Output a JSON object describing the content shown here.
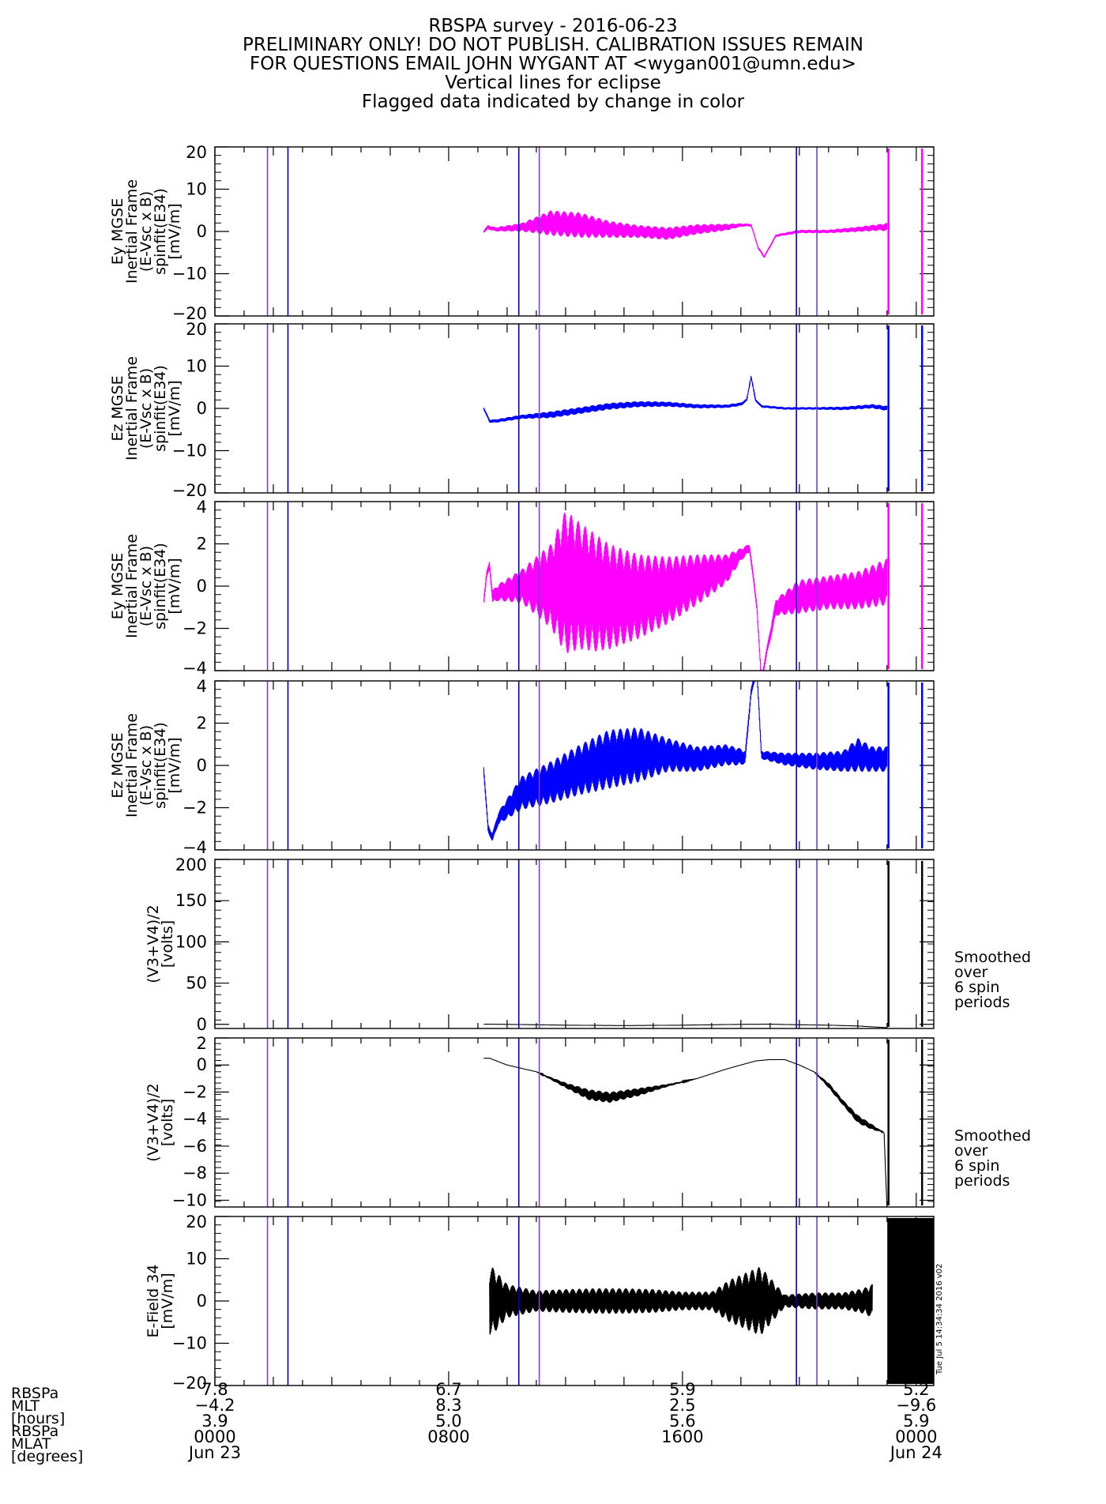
{
  "title_lines": [
    "RBSPA survey - 2016-06-23",
    "PRELIMINARY ONLY! DO NOT PUBLISH. CALIBRATION ISSUES REMAIN",
    "FOR QUESTIONS EMAIL JOHN WYGANT AT <wygan001@umn.edu>",
    "Vertical lines for eclipse",
    "Flagged data indicated by change in color"
  ],
  "side_notes": [
    {
      "panel": 4,
      "lines": [
        "Smoothed",
        "over",
        "6 spin",
        "periods"
      ]
    },
    {
      "panel": 5,
      "lines": [
        "Smoothed",
        "over",
        "6 spin",
        "periods"
      ]
    }
  ],
  "stamp": "Tue Jul  5 14:34:34 2016 v02",
  "colors": {
    "magenta": "#ff00ff",
    "blue": "#0000ff",
    "black": "#000000",
    "eclipse_outer": "#0000cc",
    "eclipse_inner": "#7b3fd6"
  },
  "x_axis": {
    "row_labels": [
      "RBSPa",
      "MLT",
      "[hours]",
      "RBSPa",
      "MLAT",
      "[degrees]"
    ],
    "ticks": [
      {
        "hour": 0,
        "mlt": "7.8",
        "mlat": "-4.2",
        "l": "3.9",
        "time": "0000",
        "date": "Jun 23"
      },
      {
        "hour": 8,
        "mlt": "6.7",
        "mlat": "8.3",
        "l": "5.0",
        "time": "0800",
        "date": ""
      },
      {
        "hour": 16,
        "mlt": "5.9",
        "mlat": "2.5",
        "l": "5.6",
        "time": "1600",
        "date": ""
      },
      {
        "hour": 24,
        "mlt": "5.2",
        "mlat": "-9.6",
        "l": "5.9",
        "time": "0000",
        "date": "Jun 24"
      }
    ]
  },
  "chart_data": [
    {
      "type": "line",
      "ylabel_lines": [
        "Ey MGSE",
        "Inertial Frame",
        "(E-Vsc x B)",
        "spinfit(E34)",
        "[mV/m]"
      ],
      "ylim": [
        -20,
        20
      ],
      "yticks": [
        20,
        10,
        0,
        -10,
        -20
      ],
      "series": [
        {
          "color": "magenta",
          "x": [
            9.2,
            9.35,
            9.6,
            10.5,
            11.5,
            12.5,
            13.5,
            14.5,
            15.5,
            16.5,
            17.5,
            18.0,
            18.35,
            18.6,
            18.8,
            19.2,
            20.0,
            21.0,
            22.0,
            22.8,
            23.0
          ],
          "y": [
            0,
            1,
            0.5,
            1,
            2,
            1.5,
            0.5,
            0,
            -0.5,
            0.5,
            1,
            1.5,
            1.5,
            -4,
            -6,
            -1,
            0,
            0,
            0.5,
            1,
            1
          ],
          "noise": [
            0.3,
            0.5,
            0.5,
            1,
            3,
            3,
            2,
            1.5,
            1.5,
            1.2,
            0.8,
            0.4,
            0.3,
            0.3,
            0.3,
            0.3,
            0.4,
            0.4,
            0.6,
            0.8,
            1
          ]
        }
      ]
    },
    {
      "type": "line",
      "ylabel_lines": [
        "Ez MGSE",
        "Inertial Frame",
        "(E-Vsc x B)",
        "spinfit(E34)",
        "[mV/m]"
      ],
      "ylim": [
        -20,
        20
      ],
      "yticks": [
        20,
        10,
        0,
        -10,
        -20
      ],
      "series": [
        {
          "color": "blue",
          "x": [
            9.2,
            9.4,
            9.6,
            10.5,
            11.5,
            12.5,
            13.5,
            14.5,
            15.5,
            16.5,
            17.5,
            18.0,
            18.2,
            18.35,
            18.5,
            18.7,
            19.5,
            20.5,
            21.5,
            22.5,
            23.0
          ],
          "y": [
            0,
            -3,
            -3,
            -2,
            -1.5,
            -0.5,
            0.5,
            1,
            1,
            0.5,
            0.5,
            1,
            2,
            7.5,
            2,
            0.5,
            0,
            0,
            0,
            0.5,
            0
          ],
          "noise": [
            0.3,
            0.4,
            0.4,
            0.5,
            0.8,
            0.8,
            0.8,
            0.7,
            0.6,
            0.5,
            0.4,
            0.4,
            0.3,
            0.3,
            0.3,
            0.3,
            0.3,
            0.3,
            0.4,
            0.5,
            0.6
          ]
        }
      ]
    },
    {
      "type": "line",
      "ylabel_lines": [
        "Ey MGSE",
        "Inertial Frame",
        "(E-Vsc x B)",
        "spinfit(E34)",
        "[mV/m]"
      ],
      "ylim": [
        -4,
        4
      ],
      "yticks": [
        4,
        2,
        0,
        -2,
        -4
      ],
      "series": [
        {
          "color": "magenta",
          "x": [
            9.2,
            9.3,
            9.4,
            9.5,
            9.7,
            10.5,
            11.5,
            12.0,
            12.5,
            13.0,
            13.5,
            14.5,
            15.5,
            16.5,
            17.5,
            18.0,
            18.3,
            18.55,
            18.7,
            18.9,
            19.2,
            20.0,
            21.0,
            22.0,
            22.5,
            23.0
          ],
          "y": [
            -0.7,
            0.5,
            1,
            -0.5,
            -0.3,
            0,
            0,
            0.2,
            0,
            -0.3,
            -0.5,
            -0.5,
            -0.2,
            0.3,
            0.8,
            1.5,
            1.8,
            -1,
            -4.5,
            -3,
            -1,
            -0.5,
            -0.3,
            -0.2,
            0,
            0.2
          ],
          "noise": [
            0.2,
            0.2,
            0.2,
            0.3,
            0.4,
            0.8,
            2,
            3.4,
            3,
            2.8,
            2.5,
            2,
            1.6,
            1.2,
            0.7,
            0.3,
            0.2,
            0.2,
            0.2,
            0.2,
            0.4,
            0.8,
            0.8,
            0.9,
            1,
            1.1
          ]
        }
      ]
    },
    {
      "type": "line",
      "ylabel_lines": [
        "Ez MGSE",
        "Inertial Frame",
        "(E-Vsc x B)",
        "spinfit(E34)",
        "[mV/m]"
      ],
      "ylim": [
        -4,
        4
      ],
      "yticks": [
        4,
        2,
        0,
        -2,
        -4
      ],
      "series": [
        {
          "color": "blue",
          "x": [
            9.2,
            9.35,
            9.5,
            9.7,
            10.5,
            11.5,
            12.5,
            13.5,
            14.5,
            15.5,
            16.5,
            17.5,
            18.0,
            18.15,
            18.35,
            18.55,
            18.7,
            19.5,
            20.5,
            21.5,
            22.0,
            22.5,
            23.0
          ],
          "y": [
            -0.2,
            -3,
            -3.4,
            -2.5,
            -1.3,
            -0.8,
            -0.2,
            0.3,
            0.5,
            0.5,
            0.3,
            0.5,
            0.4,
            0.4,
            3.5,
            4.5,
            0.5,
            0.3,
            0.2,
            0.2,
            0.5,
            0.3,
            0.3
          ],
          "noise": [
            0.2,
            0.2,
            0.2,
            0.3,
            0.8,
            1,
            1.2,
            1.4,
            1.3,
            0.8,
            0.6,
            0.5,
            0.4,
            0.3,
            0.2,
            0.2,
            0.2,
            0.3,
            0.4,
            0.5,
            0.8,
            0.6,
            0.6
          ]
        }
      ]
    },
    {
      "type": "line",
      "ylabel_lines": [
        "(V3+V4)/2",
        "[volts]"
      ],
      "ylim": [
        -5,
        200
      ],
      "yticks": [
        200,
        150,
        100,
        50,
        0
      ],
      "series": [
        {
          "color": "black",
          "x": [
            9.2,
            10,
            12,
            14,
            16,
            18,
            19,
            20,
            21,
            22,
            22.5,
            23.0
          ],
          "y": [
            0.2,
            0,
            -1,
            -1.5,
            -1,
            0,
            0.2,
            -0.5,
            -1,
            -2,
            -3,
            -4
          ],
          "noise": [
            0,
            0,
            0,
            0,
            0,
            0,
            0,
            0,
            0,
            0,
            0,
            0
          ]
        }
      ]
    },
    {
      "type": "line",
      "ylabel_lines": [
        "(V3+V4)/2",
        "[volts]"
      ],
      "ylim": [
        -10.5,
        2
      ],
      "yticks": [
        2,
        0,
        -2,
        -4,
        -6,
        -8,
        -10
      ],
      "series": [
        {
          "color": "black",
          "x": [
            9.2,
            9.4,
            10,
            11,
            12,
            12.8,
            13.5,
            14.5,
            15.5,
            16.5,
            17.5,
            18.0,
            18.5,
            19.0,
            19.5,
            20.0,
            20.5,
            21.0,
            21.5,
            22.0,
            22.5,
            22.9,
            22.95,
            23.0
          ],
          "y": [
            0.5,
            0.5,
            0,
            -0.5,
            -1.5,
            -2.2,
            -2.4,
            -2,
            -1.5,
            -1,
            -0.3,
            0,
            0.3,
            0.4,
            0.4,
            0,
            -0.5,
            -1.5,
            -2.8,
            -4,
            -4.6,
            -5,
            -8,
            -10.5
          ],
          "noise": [
            0,
            0,
            0,
            0,
            0.2,
            0.4,
            0.4,
            0.3,
            0.1,
            0,
            0,
            0,
            0,
            0,
            0,
            0,
            0,
            0.2,
            0.2,
            0.3,
            0.2,
            0,
            0,
            0
          ]
        }
      ]
    },
    {
      "type": "line",
      "ylabel_lines": [
        "E-Field 34",
        "[mV/m]"
      ],
      "ylim": [
        -20,
        20
      ],
      "yticks": [
        20,
        10,
        0,
        -10,
        -20
      ],
      "series": [
        {
          "color": "black",
          "x": [
            9.4,
            9.5,
            10,
            11,
            12,
            13,
            14,
            15,
            16,
            17,
            17.5,
            17.6,
            18.6,
            18.7,
            19.5,
            20.5,
            21.5,
            22.2,
            22.5
          ],
          "y": [
            0,
            0,
            0,
            0,
            0,
            0,
            0,
            0,
            0,
            0,
            0,
            0,
            0,
            0,
            0,
            0,
            0,
            0,
            0
          ],
          "noise": [
            8,
            8,
            4,
            2.5,
            2.8,
            3,
            3,
            2.8,
            2.2,
            2.2,
            4.5,
            5,
            8,
            8,
            1.5,
            2,
            2,
            3,
            4
          ]
        }
      ]
    }
  ],
  "eclipse_hours": [
    1.8,
    2.5,
    10.4,
    11.1,
    19.9,
    20.6
  ]
}
